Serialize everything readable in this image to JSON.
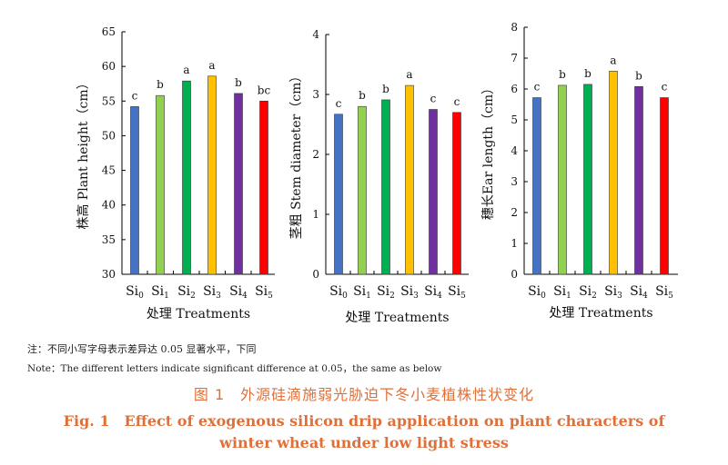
{
  "chart_data": [
    {
      "type": "bar",
      "categories": [
        "Si0",
        "Si1",
        "Si2",
        "Si3",
        "Si4",
        "Si5"
      ],
      "category_labels": [
        {
          "base": "Si",
          "sub": "0"
        },
        {
          "base": "Si",
          "sub": "1"
        },
        {
          "base": "Si",
          "sub": "2"
        },
        {
          "base": "Si",
          "sub": "3"
        },
        {
          "base": "Si",
          "sub": "4"
        },
        {
          "base": "Si",
          "sub": "5"
        }
      ],
      "values": [
        54.2,
        55.8,
        57.9,
        58.6,
        56.1,
        55.0
      ],
      "significance": [
        "c",
        "b",
        "a",
        "a",
        "b",
        "bc"
      ],
      "colors": [
        "#4472c4",
        "#92d050",
        "#00b050",
        "#ffc000",
        "#7030a0",
        "#ff0000"
      ],
      "ylabel": "株高 Plant height（cm）",
      "xlabel": "处理 Treatments",
      "ylim": [
        30,
        65
      ],
      "yticks": [
        30,
        35,
        40,
        45,
        50,
        55,
        60,
        65
      ]
    },
    {
      "type": "bar",
      "categories": [
        "Si0",
        "Si1",
        "Si2",
        "Si3",
        "Si4",
        "Si5"
      ],
      "category_labels": [
        {
          "base": "Si",
          "sub": "0"
        },
        {
          "base": "Si",
          "sub": "1"
        },
        {
          "base": "Si",
          "sub": "2"
        },
        {
          "base": "Si",
          "sub": "3"
        },
        {
          "base": "Si",
          "sub": "4"
        },
        {
          "base": "Si",
          "sub": "5"
        }
      ],
      "values": [
        2.67,
        2.8,
        2.91,
        3.15,
        2.75,
        2.7
      ],
      "significance": [
        "c",
        "b",
        "b",
        "a",
        "c",
        "c"
      ],
      "colors": [
        "#4472c4",
        "#92d050",
        "#00b050",
        "#ffc000",
        "#7030a0",
        "#ff0000"
      ],
      "ylabel": "茎粗 Stem diameter（cm）",
      "xlabel": "处理 Treatments",
      "ylim": [
        0,
        4
      ],
      "yticks": [
        0,
        1,
        2,
        3,
        4
      ]
    },
    {
      "type": "bar",
      "categories": [
        "Si0",
        "Si1",
        "Si2",
        "Si3",
        "Si4",
        "Si5"
      ],
      "category_labels": [
        {
          "base": "Si",
          "sub": "0"
        },
        {
          "base": "Si",
          "sub": "1"
        },
        {
          "base": "Si",
          "sub": "2"
        },
        {
          "base": "Si",
          "sub": "3"
        },
        {
          "base": "Si",
          "sub": "4"
        },
        {
          "base": "Si",
          "sub": "5"
        }
      ],
      "values": [
        5.72,
        6.12,
        6.15,
        6.58,
        6.08,
        5.72
      ],
      "significance": [
        "c",
        "b",
        "b",
        "a",
        "b",
        "c"
      ],
      "colors": [
        "#4472c4",
        "#92d050",
        "#00b050",
        "#ffc000",
        "#7030a0",
        "#ff0000"
      ],
      "ylabel": "穗长Ear length（cm）",
      "xlabel": "处理 Treatments",
      "ylim": [
        0,
        8
      ],
      "yticks": [
        0,
        1,
        2,
        3,
        4,
        5,
        6,
        7,
        8
      ]
    }
  ],
  "notes": {
    "zh": "注：不同小写字母表示差异达 0.05 显著水平，下同",
    "en": "Note：The different letters indicate significant difference at 0.05，the same as below"
  },
  "caption": {
    "zh": "图 1　外源硅滴施弱光胁迫下冬小麦植株性状变化",
    "en_line1": "Fig. 1　Effect of exogenous silicon drip application on plant characters of",
    "en_line2": "winter wheat under low light stress"
  }
}
